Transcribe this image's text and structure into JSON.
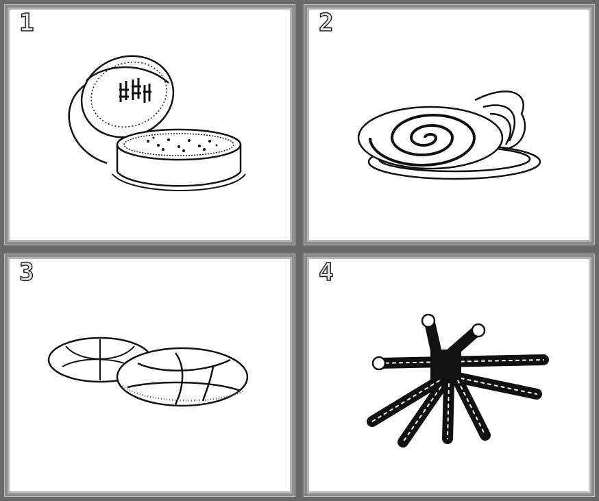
{
  "panels": [
    {
      "number": "1",
      "icon": "mooncake-box-icon"
    },
    {
      "number": "2",
      "icon": "swirl-pastry-icon"
    },
    {
      "number": "3",
      "icon": "flower-bun-icon"
    },
    {
      "number": "4",
      "icon": "fried-dough-sticks-icon"
    }
  ],
  "colors": {
    "frame": "#6a6a6a",
    "background": "#000000",
    "panel": "#ffffff",
    "ink": "#111111"
  }
}
